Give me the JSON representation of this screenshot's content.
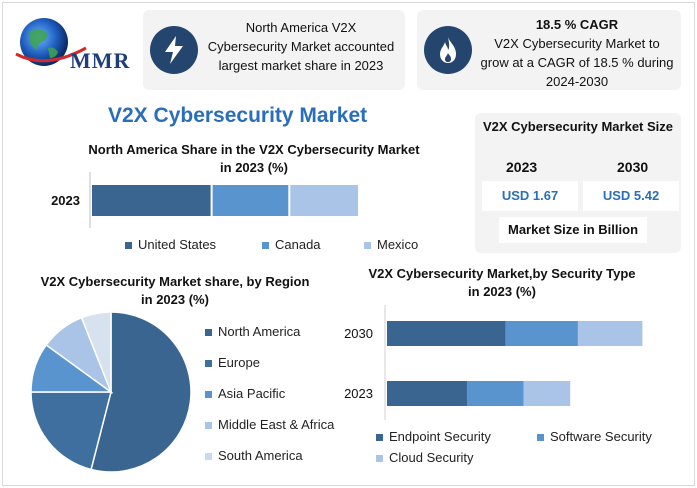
{
  "logo": {
    "text": "MMR"
  },
  "cards": [
    {
      "heading": "",
      "text": "North America V2X Cybersecurity Market accounted largest market share in 2023",
      "icon": "lightning-icon"
    },
    {
      "heading": "18.5 % CAGR",
      "text": "V2X Cybersecurity Market to grow at a CAGR of 18.5 % during 2024-2030",
      "icon": "flame-icon"
    }
  ],
  "main_title": "V2X Cybersecurity Market",
  "market_size": {
    "title": "V2X Cybersecurity Market Size",
    "years": [
      "2023",
      "2030"
    ],
    "values": [
      "USD 1.67",
      "USD 5.42"
    ],
    "unit": "Market Size in Billion"
  },
  "colors": {
    "dark_blue": "#3a6591",
    "mid_blue": "#5a94cf",
    "light_blue": "#a9c4e6",
    "pale_blue": "#c9d9ee",
    "very_pale": "#d8e2ef",
    "accent": "#2a6ebb",
    "icon_bg": "#24466e"
  },
  "chart_data": [
    {
      "type": "bar",
      "orientation": "horizontal",
      "stacked": true,
      "title": "North America Share in the V2X Cybersecurity Market in 2023 (%)",
      "categories": [
        "2023"
      ],
      "series": [
        {
          "name": "United States",
          "values": [
            45
          ]
        },
        {
          "name": "Canada",
          "values": [
            29
          ]
        },
        {
          "name": "Mexico",
          "values": [
            26
          ]
        }
      ],
      "legend_position": "bottom",
      "grid": false
    },
    {
      "type": "pie",
      "title": "V2X Cybersecurity Market share, by Region in 2023  (%)",
      "labels": [
        "North America",
        "Europe",
        "Asia Pacific",
        "Middle East & Africa",
        "South America"
      ],
      "values": [
        54,
        21,
        10,
        9,
        6
      ],
      "legend_position": "right"
    },
    {
      "type": "bar",
      "orientation": "horizontal",
      "stacked": true,
      "title": "V2X Cybersecurity Market,by Security Type in 2023 (%)",
      "categories": [
        "2030",
        "2023"
      ],
      "series": [
        {
          "name": "Endpoint Security",
          "values": [
            46,
            31
          ]
        },
        {
          "name": "Software Security",
          "values": [
            28,
            22
          ]
        },
        {
          "name": "Cloud Security",
          "values": [
            25,
            18
          ]
        }
      ],
      "legend_position": "bottom",
      "grid": false
    }
  ]
}
